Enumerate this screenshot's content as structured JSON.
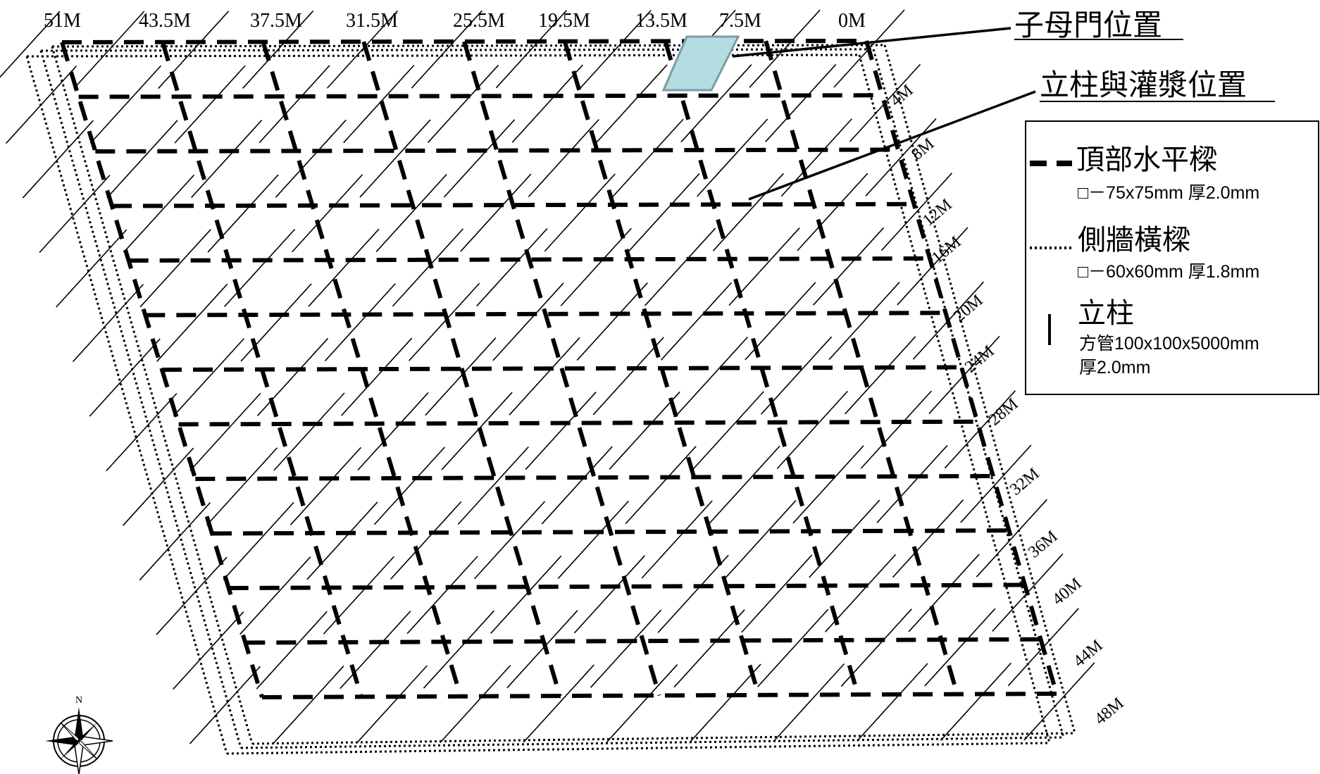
{
  "top_labels": [
    "51M",
    "43.5M",
    "37.5M",
    "31.5M",
    "25.5M",
    "19.5M",
    "13.5M",
    "7.5M",
    "0M"
  ],
  "side_labels": [
    "4M",
    "8M",
    "12M",
    "16M",
    "20M",
    "24M",
    "28M",
    "32M",
    "36M",
    "40M",
    "44M",
    "48M"
  ],
  "callouts": {
    "gate": "子母門位置",
    "column_grout": "立柱與灌漿位置"
  },
  "legend": {
    "items": [
      {
        "title": "頂部水平樑",
        "spec": "□－75x75mm 厚2.0mm",
        "style": "dashed"
      },
      {
        "title": "側牆橫樑",
        "spec": "□－60x60mm 厚1.8mm",
        "style": "dotted"
      },
      {
        "title": "立柱",
        "spec": "方管100x100x5000mm",
        "spec2": "厚2.0mm",
        "style": "solid"
      }
    ]
  },
  "compass": {
    "north_label": "N"
  },
  "colors": {
    "line": "#000000",
    "gate_fill": "#b4dce3",
    "gate_stroke": "#7f9aa0"
  }
}
